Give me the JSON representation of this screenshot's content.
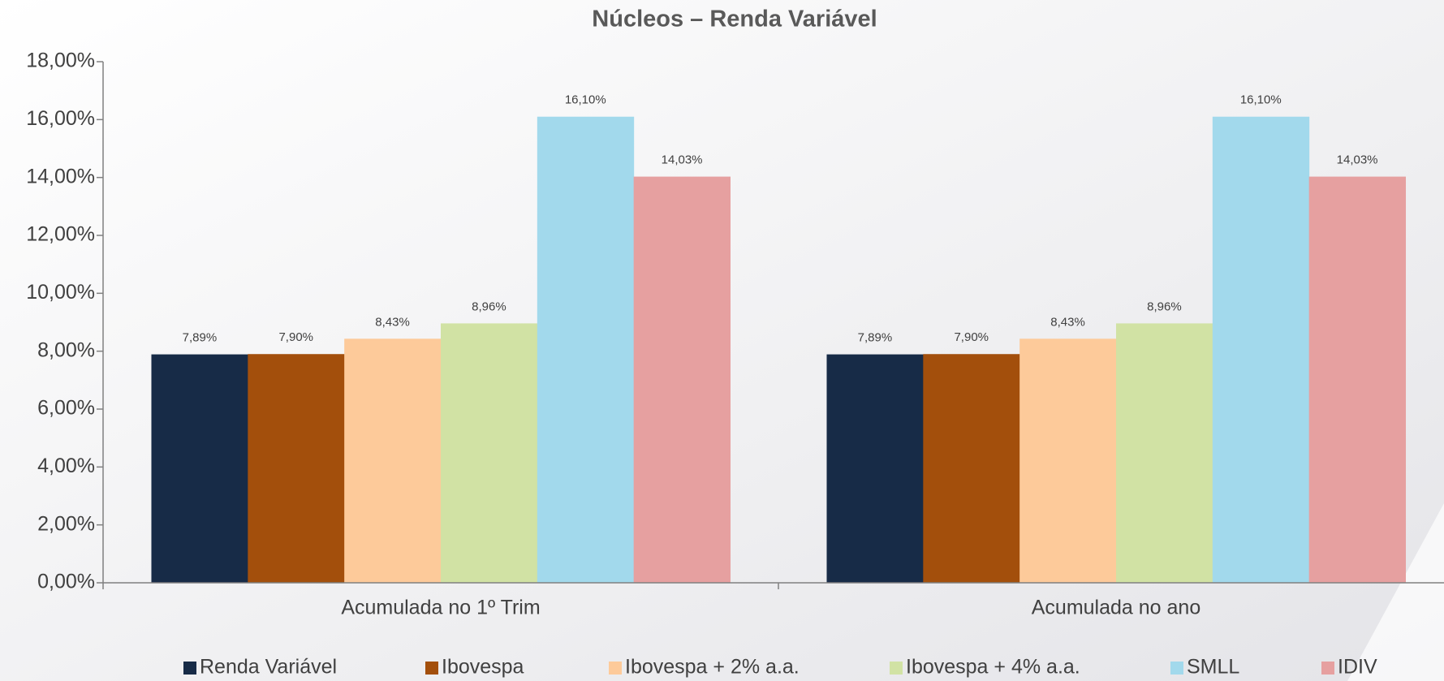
{
  "chart_data": {
    "type": "bar",
    "title": "Núcleos – Renda Variável",
    "categories": [
      "Acumulada no 1º Trim",
      "Acumulada no ano"
    ],
    "series": [
      {
        "name": "Renda Variável",
        "color": "#172b47",
        "values": [
          7.89,
          7.89
        ],
        "value_labels": [
          "7,89%",
          "7,89%"
        ]
      },
      {
        "name": "Ibovespa",
        "color": "#a34f0c",
        "values": [
          7.9,
          7.9
        ],
        "value_labels": [
          "7,90%",
          "7,90%"
        ]
      },
      {
        "name": "Ibovespa + 2% a.a.",
        "color": "#fdca9a",
        "values": [
          8.43,
          8.43
        ],
        "value_labels": [
          "8,43%",
          "8,43%"
        ]
      },
      {
        "name": "Ibovespa + 4% a.a.",
        "color": "#d1e2a4",
        "values": [
          8.96,
          8.96
        ],
        "value_labels": [
          "8,96%",
          "8,96%"
        ]
      },
      {
        "name": "SMLL",
        "color": "#a2d9ec",
        "values": [
          16.1,
          16.1
        ],
        "value_labels": [
          "16,10%",
          "16,10%"
        ]
      },
      {
        "name": "IDIV",
        "color": "#e6a0a0",
        "values": [
          14.03,
          14.03
        ],
        "value_labels": [
          "14,03%",
          "14,03%"
        ]
      }
    ],
    "ylim": [
      0,
      18
    ],
    "yticks": [
      {
        "value": 0,
        "label": "0,00%"
      },
      {
        "value": 2,
        "label": "2,00%"
      },
      {
        "value": 4,
        "label": "4,00%"
      },
      {
        "value": 6,
        "label": "6,00%"
      },
      {
        "value": 8,
        "label": "8,00%"
      },
      {
        "value": 10,
        "label": "10,00%"
      },
      {
        "value": 12,
        "label": "12,00%"
      },
      {
        "value": 14,
        "label": "14,00%"
      },
      {
        "value": 16,
        "label": "16,00%"
      },
      {
        "value": 18,
        "label": "18,00%"
      }
    ],
    "legend": "bottom"
  }
}
